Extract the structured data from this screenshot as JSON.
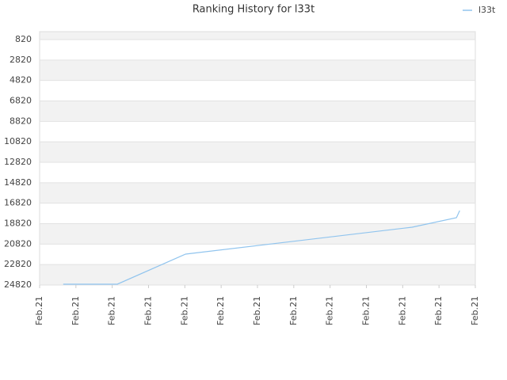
{
  "chart_data": {
    "type": "line",
    "title": "Ranking History for l33t",
    "x": [
      0.65,
      2.14,
      4.02,
      10.26,
      11.48,
      11.57
    ],
    "series": [
      {
        "name": "l33t",
        "color": "#90c4ee",
        "values": [
          24740,
          24740,
          21800,
          19168,
          18239,
          17542
        ]
      }
    ],
    "xlim": [
      0,
      12
    ],
    "xticks": [
      {
        "value": 0,
        "label": "Feb.21"
      },
      {
        "value": 1,
        "label": "Feb.21"
      },
      {
        "value": 2,
        "label": "Feb.21"
      },
      {
        "value": 3,
        "label": "Feb.21"
      },
      {
        "value": 4,
        "label": "Feb.21"
      },
      {
        "value": 5,
        "label": "Feb.21"
      },
      {
        "value": 6,
        "label": "Feb.21"
      },
      {
        "value": 7,
        "label": "Feb.21"
      },
      {
        "value": 8,
        "label": "Feb.21"
      },
      {
        "value": 9,
        "label": "Feb.21"
      },
      {
        "value": 10,
        "label": "Feb.21"
      },
      {
        "value": 11,
        "label": "Feb.21"
      },
      {
        "value": 12,
        "label": "Feb.21"
      }
    ],
    "ylim": [
      46,
      24820
    ],
    "y_inverted": true,
    "yticks": [
      820,
      2820,
      4820,
      6820,
      8820,
      10820,
      12820,
      14820,
      16820,
      18820,
      20820,
      22820,
      24820
    ],
    "grid": true,
    "legend": "top-right"
  }
}
